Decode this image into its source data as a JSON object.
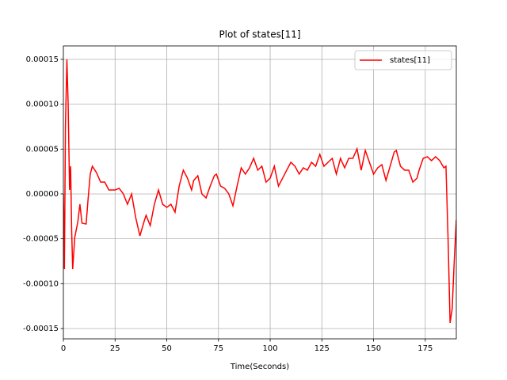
{
  "chart_data": {
    "type": "line",
    "title": "Plot of states[11]",
    "x_label": "Time(Seconds)",
    "x": [
      0,
      0.5,
      1,
      1.7,
      2.3,
      3,
      3.5,
      4,
      4.5,
      5.5,
      7,
      8,
      9,
      11,
      12,
      13,
      14,
      16,
      18,
      20,
      22,
      25,
      27,
      29,
      31,
      33,
      35,
      37,
      39,
      40,
      42,
      44,
      46,
      48,
      50,
      52,
      54,
      56,
      58,
      60,
      62,
      63,
      65,
      67,
      69,
      71,
      73,
      74,
      76,
      78,
      80,
      82,
      84,
      86,
      88,
      90,
      92,
      94,
      96,
      98,
      100,
      102,
      104,
      106,
      108,
      110,
      112,
      114,
      116,
      118,
      120,
      122,
      124,
      126,
      128,
      130,
      132,
      134,
      136,
      138,
      140,
      142,
      144,
      146,
      148,
      150,
      152,
      154,
      156,
      158,
      160,
      161,
      163,
      165,
      167,
      169,
      171,
      172,
      174,
      176,
      178,
      180,
      182,
      184,
      185,
      186,
      187,
      188,
      189,
      190
    ],
    "series": [
      {
        "name": "states[11]",
        "color": "#ff0000",
        "values": [
          0,
          -8.38e-05,
          7.5e-05,
          0.00015,
          0.000101,
          4.4e-06,
          3.09e-05,
          -3.97e-05,
          -8.38e-05,
          -4.85e-05,
          -3.09e-05,
          -1.15e-05,
          -3.26e-05,
          -3.35e-05,
          -4.4e-06,
          2.21e-05,
          3.09e-05,
          2.38e-05,
          1.32e-05,
          1.32e-05,
          4.4e-06,
          4.4e-06,
          6.2e-06,
          0,
          -1.15e-05,
          0,
          -2.65e-05,
          -4.68e-05,
          -3.09e-05,
          -2.38e-05,
          -3.53e-05,
          -1.15e-05,
          4.4e-06,
          -1.15e-05,
          -1.5e-05,
          -1.15e-05,
          -2.03e-05,
          8.8e-06,
          2.65e-05,
          1.76e-05,
          4.4e-06,
          1.5e-05,
          2.03e-05,
          0,
          -4.4e-06,
          8.8e-06,
          2.03e-05,
          2.21e-05,
          8.8e-06,
          6.2e-06,
          0,
          -1.32e-05,
          8.8e-06,
          2.91e-05,
          2.21e-05,
          2.91e-05,
          3.97e-05,
          2.65e-05,
          3.09e-05,
          1.32e-05,
          1.76e-05,
          3.09e-05,
          8.8e-06,
          1.76e-05,
          2.65e-05,
          3.53e-05,
          3.09e-05,
          2.21e-05,
          2.91e-05,
          2.65e-05,
          3.53e-05,
          3.09e-05,
          4.41e-05,
          3.09e-05,
          3.53e-05,
          3.97e-05,
          2.21e-05,
          3.97e-05,
          2.91e-05,
          3.97e-05,
          3.97e-05,
          5.03e-05,
          2.65e-05,
          4.85e-05,
          3.53e-05,
          2.21e-05,
          2.91e-05,
          3.26e-05,
          1.5e-05,
          3.09e-05,
          4.68e-05,
          4.85e-05,
          3.09e-05,
          2.65e-05,
          2.65e-05,
          1.32e-05,
          1.76e-05,
          2.65e-05,
          3.97e-05,
          4.15e-05,
          3.71e-05,
          4.15e-05,
          3.71e-05,
          2.91e-05,
          3.09e-05,
          -4.85e-05,
          -0.0001438,
          -0.000128,
          -7.5e-05,
          -2.91e-05
        ]
      }
    ],
    "xlim": [
      0,
      190
    ],
    "xticks": [
      0,
      25,
      50,
      75,
      100,
      125,
      150,
      175
    ],
    "ylim": [
      -0.0001615,
      0.000165
    ],
    "yticks": [
      {
        "value": -0.00015,
        "label": "-0.00015"
      },
      {
        "value": -0.0001,
        "label": "-0.00010"
      },
      {
        "value": -5e-05,
        "label": "-0.00005"
      },
      {
        "value": 0,
        "label": "0.00000"
      },
      {
        "value": 5e-05,
        "label": "0.00005"
      },
      {
        "value": 0.0001,
        "label": "0.00010"
      },
      {
        "value": 0.00015,
        "label": "0.00015"
      }
    ],
    "grid": true,
    "legend": "upper right"
  }
}
